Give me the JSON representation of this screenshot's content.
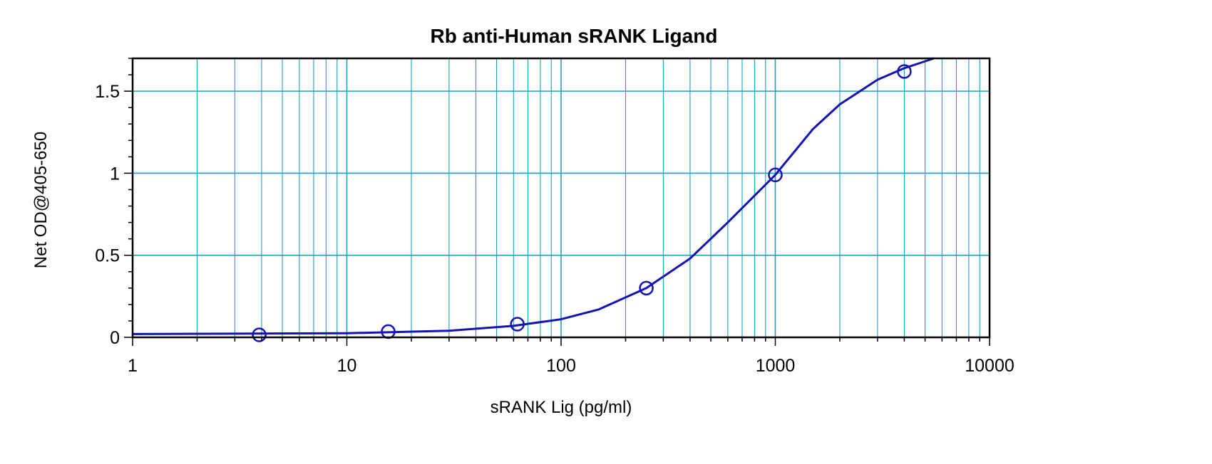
{
  "chart_data": {
    "type": "scatter",
    "title": "Rb anti-Human sRANK Ligand",
    "xlabel": "sRANK Lig (pg/ml)",
    "ylabel": "Net OD@405-650",
    "xscale": "log",
    "xlim": [
      1,
      10000
    ],
    "ylim": [
      0,
      1.7
    ],
    "x_ticks": [
      1,
      10,
      100,
      1000,
      10000
    ],
    "x_tick_labels": [
      "1",
      "10",
      "100",
      "1000",
      "10000"
    ],
    "y_ticks": [
      0,
      0.5,
      1,
      1.5
    ],
    "y_tick_labels": [
      "0",
      "0.5",
      "1",
      "1.5"
    ],
    "grid": true,
    "colors": {
      "grid": "#1f9fbf",
      "series": "#1414b4",
      "frame": "#000000"
    },
    "series": [
      {
        "marker": "open-circle",
        "x": [
          3.9,
          15.6,
          62.5,
          250,
          1000,
          4000
        ],
        "y": [
          0.015,
          0.035,
          0.08,
          0.3,
          0.99,
          1.62
        ]
      }
    ],
    "fit_curve": {
      "x": [
        1,
        10,
        30,
        60,
        100,
        150,
        250,
        400,
        600,
        1000,
        1500,
        2000,
        3000,
        4000,
        5500
      ],
      "y": [
        0.02,
        0.025,
        0.04,
        0.07,
        0.11,
        0.17,
        0.3,
        0.48,
        0.7,
        0.99,
        1.27,
        1.42,
        1.57,
        1.64,
        1.7
      ]
    }
  }
}
